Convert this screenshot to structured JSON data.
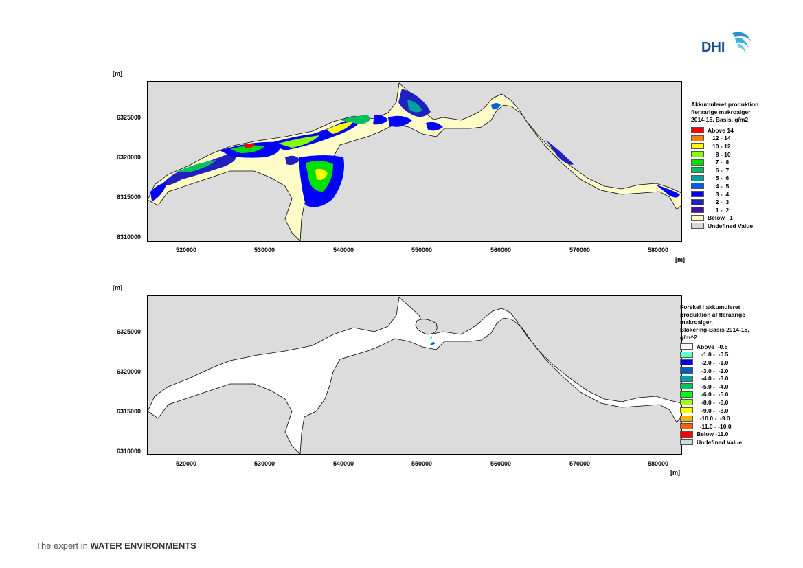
{
  "logo": {
    "text": "DHI"
  },
  "footer": {
    "prefix": "The expert in ",
    "bold": "WATER ENVIRONMENTS"
  },
  "map1": {
    "yunit": "[m]",
    "xunit": "[m]",
    "yticks": [
      "6325000",
      "6320000",
      "6315000",
      "6310000"
    ],
    "xticks": [
      "520000",
      "530000",
      "540000",
      "550000",
      "560000",
      "570000",
      "580000"
    ],
    "legend_title": [
      "Akkumuleret produktion",
      "fleraarige makroalger",
      "2014-15, Basis, g/m2"
    ],
    "legend": [
      {
        "label": "Above 14",
        "color": "#ff0000"
      },
      {
        "label": "   12 - 14",
        "color": "#ff8000"
      },
      {
        "label": "   10 - 12",
        "color": "#ffff00"
      },
      {
        "label": "     8 - 10",
        "color": "#80ff00"
      },
      {
        "label": "     7 -  8",
        "color": "#00e000"
      },
      {
        "label": "     6 -  7",
        "color": "#00c060"
      },
      {
        "label": "     5 -  6",
        "color": "#00a0a0"
      },
      {
        "label": "     4 -  5",
        "color": "#0060e0"
      },
      {
        "label": "     3 -  4",
        "color": "#0000ff"
      },
      {
        "label": "     2 -  3",
        "color": "#2020c0"
      },
      {
        "label": "     1 -  2",
        "color": "#4010a0"
      },
      {
        "label": "Below   1",
        "color": "#fffcc8"
      },
      {
        "label": "Undefined Value",
        "color": "#d8d8d8"
      }
    ]
  },
  "map2": {
    "yunit": "[m]",
    "xunit": "[m]",
    "yticks": [
      "6325000",
      "6320000",
      "6315000",
      "6310000"
    ],
    "xticks": [
      "520000",
      "530000",
      "540000",
      "550000",
      "560000",
      "570000",
      "580000"
    ],
    "legend_title": [
      "Forskel i akkumuleret",
      "produktion af fleraarige",
      "makroalger,",
      "Blokering-Basis 2014-15,",
      "g/m^2"
    ],
    "legend": [
      {
        "label": "Above  -0.5",
        "color": "#ffffff"
      },
      {
        "label": "   -1.0 -  -0.5",
        "color": "#60ffd0"
      },
      {
        "label": "   -2.0 -  -1.0",
        "color": "#0000e0"
      },
      {
        "label": "   -3.0 -  -2.0",
        "color": "#0060c0"
      },
      {
        "label": "   -4.0 -  -3.0",
        "color": "#00a0a0"
      },
      {
        "label": "   -5.0 -  -4.0",
        "color": "#00c060"
      },
      {
        "label": "   -6.0 -  -5.0",
        "color": "#00ff00"
      },
      {
        "label": "   -8.0 -  -6.0",
        "color": "#a0ff20"
      },
      {
        "label": "   -9.0 -  -8.0",
        "color": "#ffff00"
      },
      {
        "label": "  -10.0 -  -9.0",
        "color": "#ffb000"
      },
      {
        "label": "  -11.0 - -10.0",
        "color": "#ff6000"
      },
      {
        "label": "Below -11.0",
        "color": "#ff0000"
      },
      {
        "label": "Undefined Value",
        "color": "#d8d8d8"
      }
    ]
  }
}
